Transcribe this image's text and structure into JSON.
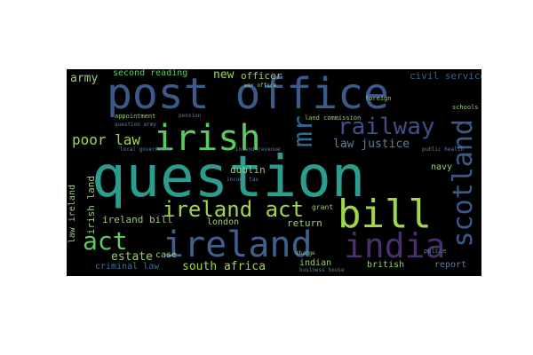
{
  "palette": {
    "background": "#000000",
    "page": "#ffffff",
    "colors": [
      "#2a9d8f",
      "#3b5a8a",
      "#404f8c",
      "#3f3a7a",
      "#4b2e71",
      "#5ec962",
      "#a0d64b",
      "#2f6b8e",
      "#24868e",
      "#1f9e89"
    ]
  },
  "words": {
    "question": "question",
    "post_office": "post office",
    "ireland": "ireland",
    "bill": "bill",
    "irish": "irish",
    "india": "india",
    "scotland": "scotland",
    "act": "act",
    "ireland_act": "ireland act",
    "railway": "railway",
    "mr": "mr",
    "poor_law": "poor law",
    "law_justice": "law justice",
    "army": "army",
    "second_reading": "second reading",
    "new": "new",
    "officer": "officer",
    "civil_service": "civil service",
    "south_africa": "south africa",
    "estate": "estate",
    "criminal_law": "criminal law",
    "case": "case",
    "irish_land": "irish land",
    "ireland_bill": "ireland bill",
    "law_ireland": "law ireland",
    "london": "london",
    "return": "return",
    "indian": "indian",
    "british": "british",
    "report": "report",
    "navy": "navy",
    "dublin": "dublin",
    "inland_revenue": "inland revenue",
    "income_tax": "income tax",
    "local_government": "local government",
    "land_commission": "land commission",
    "appointment": "appointment",
    "pension": "pension",
    "grant": "grant",
    "foreign": "foreign",
    "schools": "schools",
    "police": "police",
    "business_house": "business house",
    "charge": "charge",
    "public_health": "public health",
    "war_office": "war office",
    "question_army": "question army"
  }
}
